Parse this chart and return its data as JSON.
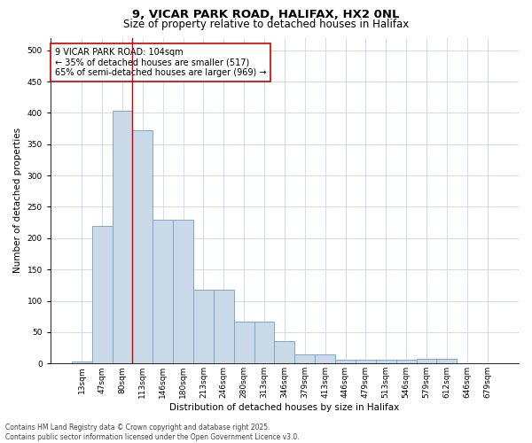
{
  "title_line1": "9, VICAR PARK ROAD, HALIFAX, HX2 0NL",
  "title_line2": "Size of property relative to detached houses in Halifax",
  "xlabel": "Distribution of detached houses by size in Halifax",
  "ylabel": "Number of detached properties",
  "categories": [
    "13sqm",
    "47sqm",
    "80sqm",
    "113sqm",
    "146sqm",
    "180sqm",
    "213sqm",
    "246sqm",
    "280sqm",
    "313sqm",
    "346sqm",
    "379sqm",
    "413sqm",
    "446sqm",
    "479sqm",
    "513sqm",
    "546sqm",
    "579sqm",
    "612sqm",
    "646sqm",
    "679sqm"
  ],
  "values": [
    3,
    220,
    403,
    372,
    230,
    230,
    118,
    118,
    67,
    67,
    36,
    15,
    14,
    6,
    6,
    6,
    6,
    7,
    7,
    1,
    1
  ],
  "bar_color": "#c9d9e8",
  "bar_edge_color": "#7aa8c7",
  "vline_x": 2.5,
  "vline_color": "#cc0000",
  "annotation_text": "9 VICAR PARK ROAD: 104sqm\n← 35% of detached houses are smaller (517)\n65% of semi-detached houses are larger (969) →",
  "annotation_box_color": "#ffffff",
  "annotation_edge_color": "#cc0000",
  "ylim": [
    0,
    520
  ],
  "yticks": [
    0,
    50,
    100,
    150,
    200,
    250,
    300,
    350,
    400,
    450,
    500
  ],
  "background_color": "#ffffff",
  "grid_color": "#c8d8e8",
  "footer_text": "Contains HM Land Registry data © Crown copyright and database right 2025.\nContains public sector information licensed under the Open Government Licence v3.0.",
  "title_fontsize": 9.5,
  "subtitle_fontsize": 8.5,
  "xlabel_fontsize": 7.5,
  "ylabel_fontsize": 7.5,
  "tick_fontsize": 6.5,
  "annotation_fontsize": 7,
  "footer_fontsize": 5.5
}
